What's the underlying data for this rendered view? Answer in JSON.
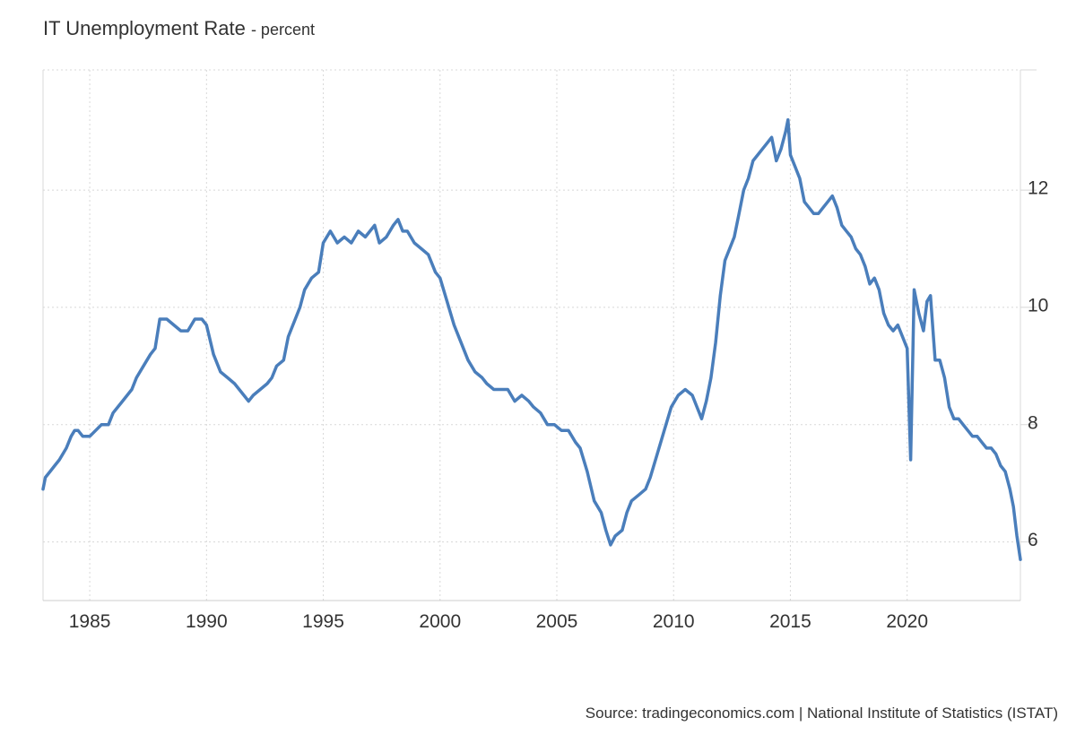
{
  "chart_data": {
    "type": "line",
    "title": "IT Unemployment Rate",
    "subtitle": "- percent",
    "source": "Source: tradingeconomics.com | National Institute of Statistics (ISTAT)",
    "xlim": [
      1983.0,
      2024.85
    ],
    "ylim": [
      5.0,
      14.05
    ],
    "x_ticks": [
      1985,
      1990,
      1995,
      2000,
      2005,
      2010,
      2015,
      2020
    ],
    "x_tick_labels": [
      "1985",
      "1990",
      "1995",
      "2000",
      "2005",
      "2010",
      "2015",
      "2020"
    ],
    "y_ticks": [
      6,
      8,
      10,
      12
    ],
    "y_tick_labels": [
      "6",
      "8",
      "10",
      "12"
    ],
    "y_axis_position": "right",
    "grid": true,
    "series": [
      {
        "color": "#4a7ebb",
        "x": [
          1983.0,
          1983.1,
          1983.3,
          1983.5,
          1983.7,
          1984.0,
          1984.2,
          1984.35,
          1984.5,
          1984.7,
          1984.9,
          1985.0,
          1985.5,
          1985.8,
          1986.0,
          1986.4,
          1986.8,
          1987.0,
          1987.3,
          1987.6,
          1987.8,
          1988.0,
          1988.3,
          1988.6,
          1988.9,
          1989.2,
          1989.5,
          1989.8,
          1990.0,
          1990.3,
          1990.6,
          1990.9,
          1991.2,
          1991.4,
          1991.6,
          1991.8,
          1992.0,
          1992.3,
          1992.6,
          1992.8,
          1993.0,
          1993.3,
          1993.5,
          1993.8,
          1994.0,
          1994.2,
          1994.5,
          1994.8,
          1995.0,
          1995.3,
          1995.6,
          1995.9,
          1996.2,
          1996.5,
          1996.8,
          1997.0,
          1997.2,
          1997.4,
          1997.7,
          1998.0,
          1998.2,
          1998.4,
          1998.6,
          1998.9,
          1999.2,
          1999.5,
          1999.8,
          2000.0,
          2000.3,
          2000.6,
          2000.9,
          2001.2,
          2001.5,
          2001.8,
          2002.0,
          2002.3,
          2002.6,
          2002.9,
          2003.2,
          2003.5,
          2003.8,
          2004.0,
          2004.3,
          2004.6,
          2004.9,
          2005.2,
          2005.5,
          2005.8,
          2006.0,
          2006.3,
          2006.6,
          2006.9,
          2007.1,
          2007.3,
          2007.5,
          2007.8,
          2008.0,
          2008.2,
          2008.5,
          2008.8,
          2009.0,
          2009.3,
          2009.6,
          2009.9,
          2010.2,
          2010.5,
          2010.8,
          2011.0,
          2011.2,
          2011.4,
          2011.6,
          2011.8,
          2012.0,
          2012.2,
          2012.4,
          2012.6,
          2012.8,
          2013.0,
          2013.2,
          2013.4,
          2013.6,
          2013.8,
          2014.0,
          2014.2,
          2014.4,
          2014.6,
          2014.8,
          2014.9,
          2015.0,
          2015.2,
          2015.4,
          2015.6,
          2015.8,
          2016.0,
          2016.2,
          2016.4,
          2016.6,
          2016.8,
          2017.0,
          2017.2,
          2017.4,
          2017.6,
          2017.8,
          2018.0,
          2018.2,
          2018.4,
          2018.6,
          2018.8,
          2019.0,
          2019.2,
          2019.4,
          2019.6,
          2019.8,
          2020.0,
          2020.15,
          2020.3,
          2020.5,
          2020.7,
          2020.85,
          2021.0,
          2021.2,
          2021.4,
          2021.6,
          2021.8,
          2022.0,
          2022.2,
          2022.4,
          2022.6,
          2022.8,
          2023.0,
          2023.2,
          2023.4,
          2023.6,
          2023.8,
          2024.0,
          2024.2,
          2024.4,
          2024.55,
          2024.7,
          2024.85
        ],
        "values": [
          6.9,
          7.1,
          7.2,
          7.3,
          7.4,
          7.6,
          7.8,
          7.9,
          7.9,
          7.8,
          7.8,
          7.8,
          8.0,
          8.0,
          8.2,
          8.4,
          8.6,
          8.8,
          9.0,
          9.2,
          9.3,
          9.8,
          9.8,
          9.7,
          9.6,
          9.6,
          9.8,
          9.8,
          9.7,
          9.2,
          8.9,
          8.8,
          8.7,
          8.6,
          8.5,
          8.4,
          8.5,
          8.6,
          8.7,
          8.8,
          9.0,
          9.1,
          9.5,
          9.8,
          10.0,
          10.3,
          10.5,
          10.6,
          11.1,
          11.3,
          11.1,
          11.2,
          11.1,
          11.3,
          11.2,
          11.3,
          11.4,
          11.1,
          11.2,
          11.4,
          11.5,
          11.3,
          11.3,
          11.1,
          11.0,
          10.9,
          10.6,
          10.5,
          10.1,
          9.7,
          9.4,
          9.1,
          8.9,
          8.8,
          8.7,
          8.6,
          8.6,
          8.6,
          8.4,
          8.5,
          8.4,
          8.3,
          8.2,
          8.0,
          8.0,
          7.9,
          7.9,
          7.7,
          7.6,
          7.2,
          6.7,
          6.5,
          6.2,
          5.95,
          6.1,
          6.2,
          6.5,
          6.7,
          6.8,
          6.9,
          7.1,
          7.5,
          7.9,
          8.3,
          8.5,
          8.6,
          8.5,
          8.3,
          8.1,
          8.4,
          8.8,
          9.4,
          10.2,
          10.8,
          11.0,
          11.2,
          11.6,
          12.0,
          12.2,
          12.5,
          12.6,
          12.7,
          12.8,
          12.9,
          12.5,
          12.7,
          13.0,
          13.2,
          12.6,
          12.4,
          12.2,
          11.8,
          11.7,
          11.6,
          11.6,
          11.7,
          11.8,
          11.9,
          11.7,
          11.4,
          11.3,
          11.2,
          11.0,
          10.9,
          10.7,
          10.4,
          10.5,
          10.3,
          9.9,
          9.7,
          9.6,
          9.7,
          9.5,
          9.3,
          7.4,
          10.3,
          9.9,
          9.6,
          10.1,
          10.2,
          9.1,
          9.1,
          8.8,
          8.3,
          8.1,
          8.1,
          8.0,
          7.9,
          7.8,
          7.8,
          7.7,
          7.6,
          7.6,
          7.5,
          7.3,
          7.2,
          6.9,
          6.6,
          6.1,
          5.7
        ]
      }
    ]
  }
}
